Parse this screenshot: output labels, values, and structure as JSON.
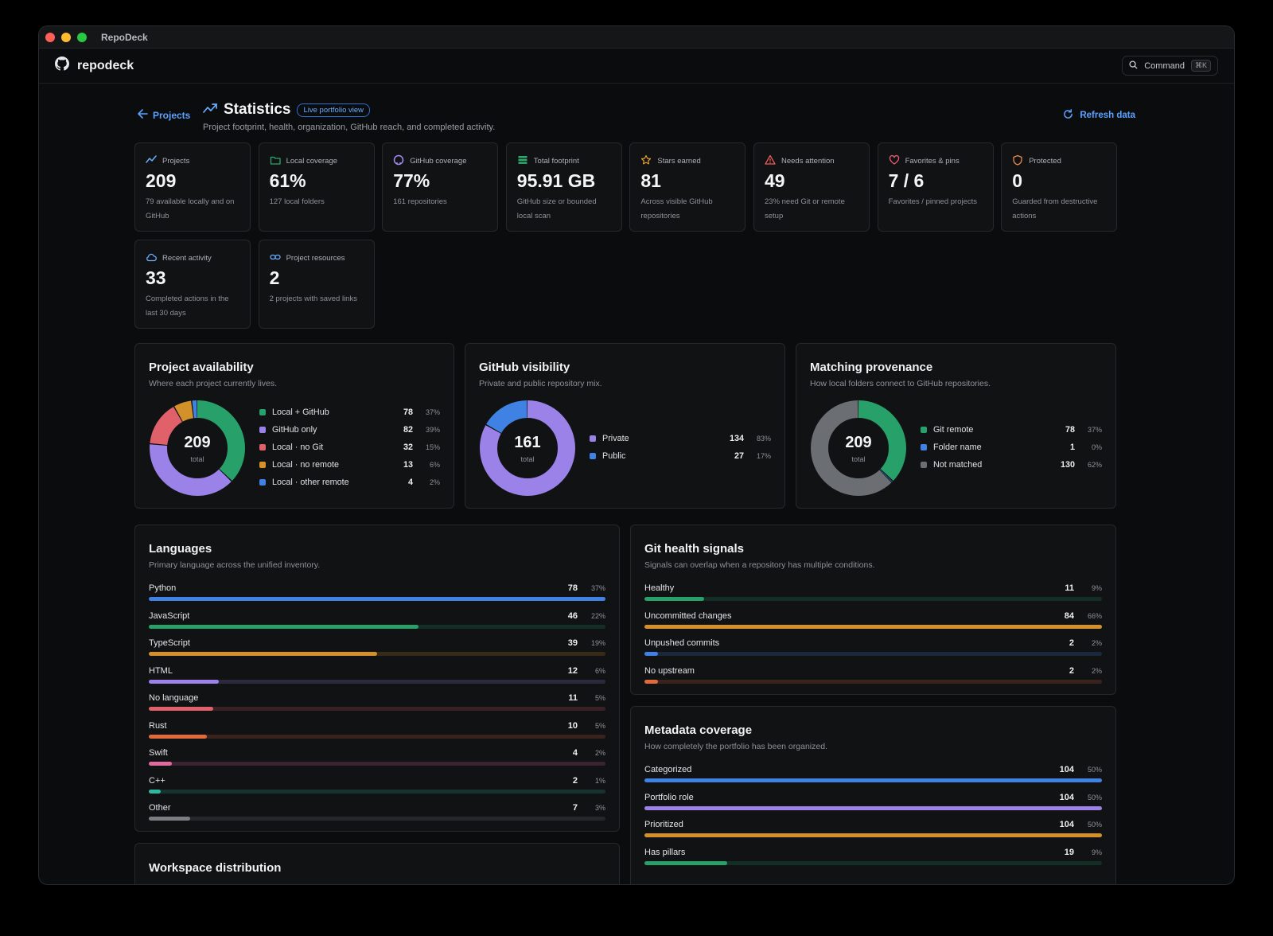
{
  "window": {
    "title": "RepoDeck"
  },
  "app": {
    "brand": "repodeck",
    "command_label": "Command",
    "command_shortcut": "⌘K"
  },
  "header": {
    "back_label": "Projects",
    "title": "Statistics",
    "badge": "Live portfolio view",
    "subtitle": "Project footprint, health, organization, GitHub reach, and completed activity.",
    "refresh_label": "Refresh data"
  },
  "stats": [
    {
      "label": "Projects",
      "value": "209",
      "desc": "79 available locally and on GitHub",
      "icon": "trend-icon",
      "color": "#6aaeff"
    },
    {
      "label": "Local coverage",
      "value": "61%",
      "desc": "127 local folders",
      "icon": "folder-icon",
      "color": "#2ea86b"
    },
    {
      "label": "GitHub coverage",
      "value": "77%",
      "desc": "161 repositories",
      "icon": "github-icon",
      "color": "#a78bfa"
    },
    {
      "label": "Total footprint",
      "value": "95.91 GB",
      "desc": "GitHub size or bounded local scan",
      "icon": "database-icon",
      "color": "#2ea86b"
    },
    {
      "label": "Stars earned",
      "value": "81",
      "desc": "Across visible GitHub repositories",
      "icon": "star-icon",
      "color": "#e0a030"
    },
    {
      "label": "Needs attention",
      "value": "49",
      "desc": "23% need Git or remote setup",
      "icon": "warning-icon",
      "color": "#ef5b5b"
    },
    {
      "label": "Favorites & pins",
      "value": "7 / 6",
      "desc": "Favorites / pinned projects",
      "icon": "heart-icon",
      "color": "#ef5b73"
    },
    {
      "label": "Protected",
      "value": "0",
      "desc": "Guarded from destructive actions",
      "icon": "shield-icon",
      "color": "#f08a4b"
    },
    {
      "label": "Recent activity",
      "value": "33",
      "desc": "Completed actions in the last 30 days",
      "icon": "cloud-icon",
      "color": "#6aaeff"
    },
    {
      "label": "Project resources",
      "value": "2",
      "desc": "2 projects with saved links",
      "icon": "link-icon",
      "color": "#6aaeff"
    }
  ],
  "availability": {
    "title": "Project availability",
    "subtitle": "Where each project currently lives.",
    "total": "209",
    "total_label": "total",
    "items": [
      {
        "name": "Local + GitHub",
        "count": "78",
        "pct": "37%",
        "color": "#27a06a",
        "value": 78
      },
      {
        "name": "GitHub only",
        "count": "82",
        "pct": "39%",
        "color": "#9b82e8",
        "value": 82
      },
      {
        "name": "Local · no Git",
        "count": "32",
        "pct": "15%",
        "color": "#e0616a",
        "value": 32
      },
      {
        "name": "Local · no remote",
        "count": "13",
        "pct": "6%",
        "color": "#d4912a",
        "value": 13
      },
      {
        "name": "Local · other remote",
        "count": "4",
        "pct": "2%",
        "color": "#3f82e4",
        "value": 4
      }
    ]
  },
  "visibility": {
    "title": "GitHub visibility",
    "subtitle": "Private and public repository mix.",
    "total": "161",
    "total_label": "total",
    "items": [
      {
        "name": "Private",
        "count": "134",
        "pct": "83%",
        "color": "#9b82e8",
        "value": 134
      },
      {
        "name": "Public",
        "count": "27",
        "pct": "17%",
        "color": "#3f82e4",
        "value": 27
      }
    ]
  },
  "provenance": {
    "title": "Matching provenance",
    "subtitle": "How local folders connect to GitHub repositories.",
    "total": "209",
    "total_label": "total",
    "items": [
      {
        "name": "Git remote",
        "count": "78",
        "pct": "37%",
        "color": "#27a06a",
        "value": 78
      },
      {
        "name": "Folder name",
        "count": "1",
        "pct": "0%",
        "color": "#3f82e4",
        "value": 1
      },
      {
        "name": "Not matched",
        "count": "130",
        "pct": "62%",
        "color": "#6b6e73",
        "value": 130
      }
    ]
  },
  "languages": {
    "title": "Languages",
    "subtitle": "Primary language across the unified inventory.",
    "items": [
      {
        "name": "Python",
        "count": "78",
        "pct": "37%",
        "fill": 1.0,
        "color": "#3f82e4"
      },
      {
        "name": "JavaScript",
        "count": "46",
        "pct": "22%",
        "fill": 0.59,
        "color": "#27a06a"
      },
      {
        "name": "TypeScript",
        "count": "39",
        "pct": "19%",
        "fill": 0.5,
        "color": "#d4912a"
      },
      {
        "name": "HTML",
        "count": "12",
        "pct": "6%",
        "fill": 0.154,
        "color": "#9b82e8"
      },
      {
        "name": "No language",
        "count": "11",
        "pct": "5%",
        "fill": 0.141,
        "color": "#e0616a"
      },
      {
        "name": "Rust",
        "count": "10",
        "pct": "5%",
        "fill": 0.128,
        "color": "#e06a3a"
      },
      {
        "name": "Swift",
        "count": "4",
        "pct": "2%",
        "fill": 0.051,
        "color": "#e06aa0"
      },
      {
        "name": "C++",
        "count": "2",
        "pct": "1%",
        "fill": 0.026,
        "color": "#2fb7a0"
      },
      {
        "name": "Other",
        "count": "7",
        "pct": "3%",
        "fill": 0.09,
        "color": "#7a7d82"
      }
    ]
  },
  "git_health": {
    "title": "Git health signals",
    "subtitle": "Signals can overlap when a repository has multiple conditions.",
    "items": [
      {
        "name": "Healthy",
        "count": "11",
        "pct": "9%",
        "fill": 0.13,
        "color": "#27a06a"
      },
      {
        "name": "Uncommitted changes",
        "count": "84",
        "pct": "66%",
        "fill": 1.0,
        "color": "#d4912a"
      },
      {
        "name": "Unpushed commits",
        "count": "2",
        "pct": "2%",
        "fill": 0.03,
        "color": "#3f82e4"
      },
      {
        "name": "No upstream",
        "count": "2",
        "pct": "2%",
        "fill": 0.03,
        "color": "#e06a3a"
      }
    ]
  },
  "metadata": {
    "title": "Metadata coverage",
    "subtitle": "How completely the portfolio has been organized.",
    "items": [
      {
        "name": "Categorized",
        "count": "104",
        "pct": "50%",
        "fill": 1.0,
        "color": "#3f82e4"
      },
      {
        "name": "Portfolio role",
        "count": "104",
        "pct": "50%",
        "fill": 1.0,
        "color": "#9b82e8"
      },
      {
        "name": "Prioritized",
        "count": "104",
        "pct": "50%",
        "fill": 1.0,
        "color": "#d4912a"
      },
      {
        "name": "Has pillars",
        "count": "19",
        "pct": "9%",
        "fill": 0.18,
        "color": "#27a06a"
      }
    ]
  },
  "workspace": {
    "title": "Workspace distribution"
  }
}
